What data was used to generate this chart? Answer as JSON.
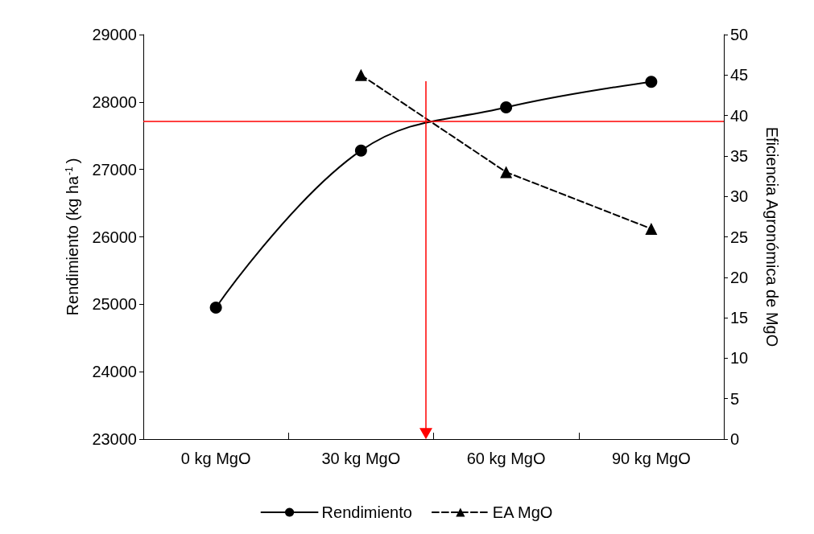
{
  "chart_data": {
    "type": "line",
    "categories": [
      "0 kg MgO",
      "30 kg MgO",
      "60 kg MgO",
      "90 kg MgO"
    ],
    "ylabel": "Rendimiento (kg ha$^{-1}$)",
    "y2label": "Eficiencia Agronómica de MgO",
    "ylim": [
      23000,
      29000
    ],
    "yticks": [
      23000,
      24000,
      25000,
      26000,
      27000,
      28000,
      29000
    ],
    "y2lim": [
      0,
      50
    ],
    "y2ticks": [
      0,
      5,
      10,
      15,
      20,
      25,
      30,
      35,
      40,
      45,
      50
    ],
    "series": [
      {
        "name": "Rendimiento",
        "color": "#000000",
        "values": [
          24950,
          27280,
          27920,
          28300
        ],
        "marker": "circle",
        "line_style": "solid"
      },
      {
        "name": "EA MgO",
        "color": "#000000",
        "values": [
          null,
          45,
          33,
          26
        ],
        "axis": "y2",
        "marker": "triangle",
        "line_style": "dashed"
      }
    ],
    "ref_lines": [
      {
        "axis": "y",
        "value": 27720,
        "color": "#ff0000"
      }
    ],
    "legend": "bottom",
    "grid": false
  }
}
